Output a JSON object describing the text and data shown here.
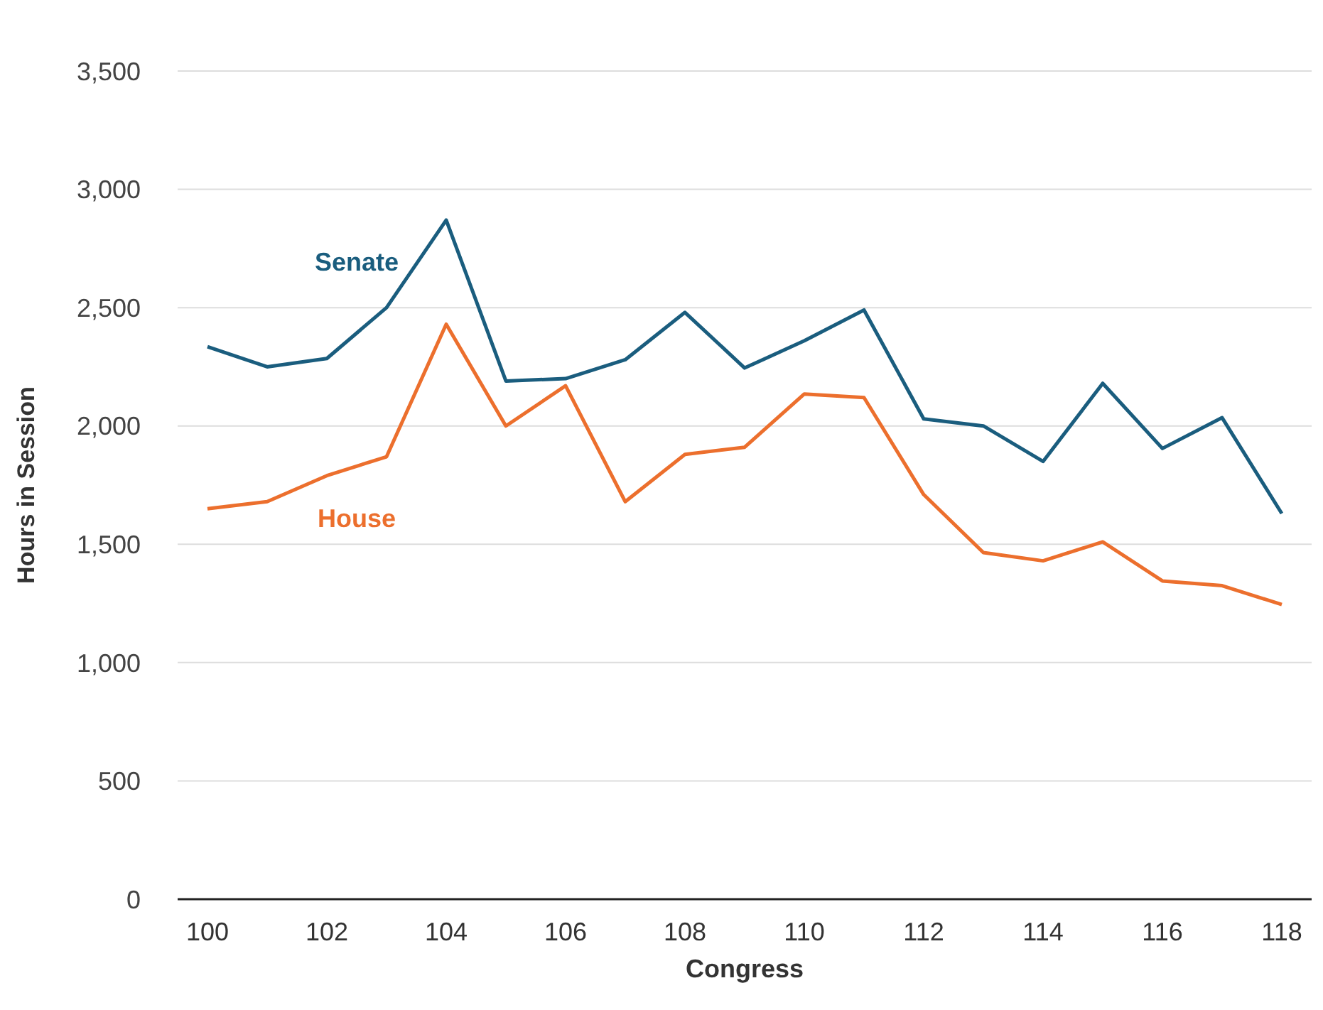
{
  "chart_data": {
    "type": "line",
    "xlabel": "Congress",
    "ylabel": "Hours in Session",
    "x": [
      100,
      101,
      102,
      103,
      104,
      105,
      106,
      107,
      108,
      109,
      110,
      111,
      112,
      113,
      114,
      115,
      116,
      117,
      118
    ],
    "series": [
      {
        "name": "Senate",
        "color": "#1a5d7e",
        "values": [
          2335,
          2250,
          2285,
          2500,
          2870,
          2190,
          2200,
          2280,
          2480,
          2245,
          2360,
          2490,
          2030,
          2000,
          1850,
          2180,
          1905,
          2035,
          1630
        ]
      },
      {
        "name": "House",
        "color": "#ec6f2d",
        "values": [
          1650,
          1680,
          1790,
          1870,
          2430,
          2000,
          2170,
          1680,
          1880,
          1910,
          2135,
          2120,
          1710,
          1465,
          1430,
          1510,
          1345,
          1325,
          1245
        ]
      }
    ],
    "xlim": [
      99.5,
      118.5
    ],
    "xticks": [
      100,
      102,
      104,
      106,
      108,
      110,
      112,
      114,
      116,
      118
    ],
    "ylim": [
      0,
      3500
    ],
    "yticks": [
      {
        "value": 0,
        "label": "0"
      },
      {
        "value": 500,
        "label": "500"
      },
      {
        "value": 1000,
        "label": "1,000"
      },
      {
        "value": 1500,
        "label": "1,500"
      },
      {
        "value": 2000,
        "label": "2,000"
      },
      {
        "value": 2500,
        "label": "2,500"
      },
      {
        "value": 3000,
        "label": "3,000"
      },
      {
        "value": 3500,
        "label": "3,500"
      }
    ],
    "grid": "y",
    "legend": false,
    "marker": "none",
    "line_style": "solid"
  }
}
